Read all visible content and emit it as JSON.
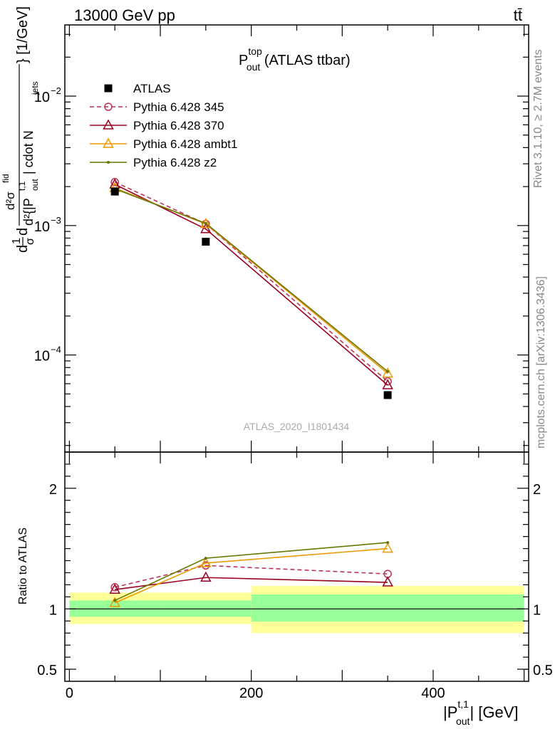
{
  "header": {
    "energy_label": "13000 GeV pp",
    "process_label": "tt̄"
  },
  "side_labels": {
    "rivet": "Rivet 3.1.10, ≥ 2.7M events",
    "mcplots": "mcplots.cern.ch [arXiv:1306.3436]"
  },
  "chart_data": [
    {
      "type": "line",
      "panel": "main",
      "title": {
        "main": "P",
        "sup": "top",
        "sub": "out",
        "suffix": " (ATLAS ttbar)"
      },
      "analysis_label": "ATLAS_2020_I1801434",
      "ylabel": "d²{|Pₕᵗ⁰ⁱ|...} [1/GeV]",
      "ylabel_parts": {
        "prefix": "d",
        "frac_num": "1",
        "frac_den": "σ",
        "d": "d",
        "num": "d²σ",
        "num_sup": "fid",
        "den": "d²{|P",
        "den_sup": "t,1",
        "den_sub": "out",
        "den_rest": "| cdot N",
        "den_rest_sub": "jets",
        "close": "} [1/GeV]"
      },
      "xlim": [
        -5,
        505
      ],
      "ylim_log10": [
        -4.75,
        -1.45
      ],
      "y_scale": "log",
      "y_ticks": [
        {
          "value": 0.01,
          "mantissa": "10",
          "exp": "−2"
        },
        {
          "value": 0.001,
          "mantissa": "10",
          "exp": "−3"
        },
        {
          "value": 0.0001,
          "mantissa": "10",
          "exp": "−4"
        }
      ],
      "legend_position": "top-left",
      "series": [
        {
          "name": "ATLAS",
          "color": "#000000",
          "marker": "square",
          "line": "none",
          "x": [
            50,
            150,
            350
          ],
          "y": [
            0.00183,
            0.00075,
            4.9e-05
          ]
        },
        {
          "name": "Pythia 6.428 345",
          "color": "#bb3355",
          "marker": "circle",
          "line": "dashed",
          "x": [
            50,
            150,
            350
          ],
          "y": [
            0.00217,
            0.00103,
            6.25e-05
          ]
        },
        {
          "name": "Pythia 6.428 370",
          "color": "#990022",
          "marker": "triangle",
          "line": "solid",
          "x": [
            50,
            150,
            350
          ],
          "y": [
            0.00208,
            0.00094,
            5.85e-05
          ]
        },
        {
          "name": "Pythia 6.428 ambt1",
          "color": "#ee9900",
          "marker": "triangle",
          "line": "solid",
          "x": [
            50,
            150,
            350
          ],
          "y": [
            0.00195,
            0.00103,
            7.2e-05
          ]
        },
        {
          "name": "Pythia 6.428 z2",
          "color": "#667700",
          "marker": "dot",
          "line": "solid",
          "x": [
            50,
            150,
            350
          ],
          "y": [
            0.00192,
            0.00104,
            7.45e-05
          ]
        }
      ]
    },
    {
      "type": "line",
      "panel": "ratio",
      "ylabel": "Ratio to ATLAS",
      "xlabel_parts": {
        "main": "|P",
        "sup": "t,1",
        "sub": "out",
        "rest": "| [GeV]"
      },
      "xlim": [
        -5,
        505
      ],
      "ylim": [
        0.4,
        2.3
      ],
      "x_ticks": [
        0,
        200,
        400
      ],
      "y_ticks": [
        {
          "value": 0.5,
          "label": "0.5"
        },
        {
          "value": 1,
          "label": "1"
        },
        {
          "value": 2,
          "label": "2"
        }
      ],
      "bands": [
        {
          "x": [
            0,
            100
          ],
          "yellow": [
            0.875,
            1.135
          ],
          "green": [
            0.935,
            1.07
          ]
        },
        {
          "x": [
            100,
            200
          ],
          "yellow": [
            0.875,
            1.135
          ],
          "green": [
            0.935,
            1.07
          ]
        },
        {
          "x": [
            200,
            500
          ],
          "yellow": [
            0.8,
            1.19
          ],
          "green": [
            0.895,
            1.12
          ]
        }
      ],
      "series": [
        {
          "name": "Pythia 6.428 345",
          "color": "#bb3355",
          "marker": "circle",
          "line": "dashed",
          "x": [
            50,
            150,
            350
          ],
          "y": [
            1.18,
            1.36,
            1.29
          ]
        },
        {
          "name": "Pythia 6.428 370",
          "color": "#990022",
          "marker": "triangle",
          "line": "solid",
          "x": [
            50,
            150,
            350
          ],
          "y": [
            1.16,
            1.26,
            1.22
          ]
        },
        {
          "name": "Pythia 6.428 ambt1",
          "color": "#ee9900",
          "marker": "triangle",
          "line": "solid",
          "x": [
            50,
            150,
            350
          ],
          "y": [
            1.05,
            1.38,
            1.5
          ]
        },
        {
          "name": "Pythia 6.428 z2",
          "color": "#667700",
          "marker": "dot",
          "line": "solid",
          "x": [
            50,
            150,
            350
          ],
          "y": [
            1.07,
            1.42,
            1.55
          ]
        }
      ]
    }
  ]
}
